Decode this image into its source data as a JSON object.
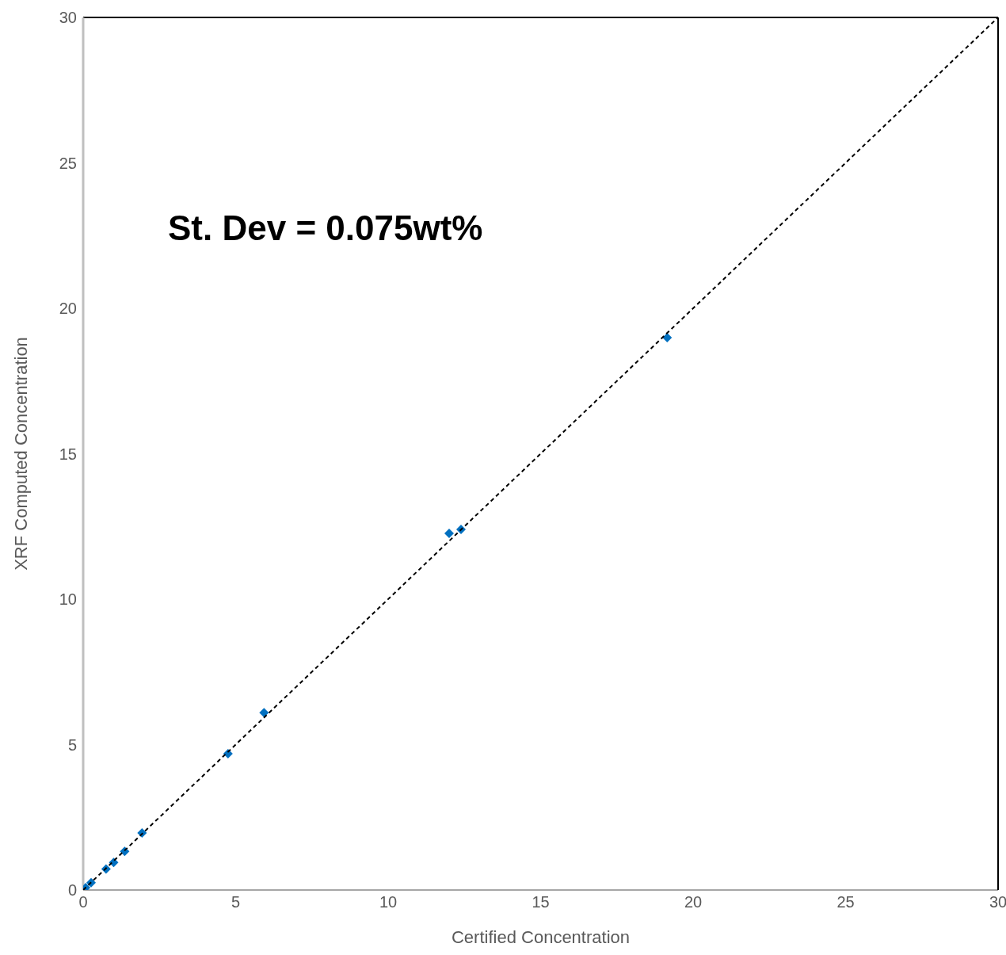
{
  "chart_data": {
    "type": "scatter",
    "xlabel": "Certified Concentration",
    "ylabel": "XRF Computed Concentration",
    "annotations": [
      "St. Dev = 0.075wt%"
    ],
    "xlim": [
      0,
      30
    ],
    "ylim": [
      0,
      30
    ],
    "xticks": [
      0,
      5,
      10,
      15,
      20,
      25,
      30
    ],
    "yticks": [
      0,
      5,
      10,
      15,
      20,
      25,
      30
    ],
    "marker": "diamond",
    "series": [
      {
        "color": "#0070c0",
        "x": [
          0.08,
          0.26,
          0.75,
          1.0,
          1.36,
          1.93,
          4.75,
          5.93,
          12.0,
          12.39,
          19.15
        ],
        "values": [
          0.08,
          0.25,
          0.72,
          0.95,
          1.33,
          1.96,
          4.69,
          6.1,
          12.26,
          12.4,
          18.99
        ]
      },
      {
        "type": "line",
        "color": "#000000",
        "line_style": "dashed",
        "marker": "none",
        "x": [
          0,
          30
        ],
        "values": [
          0,
          30
        ]
      }
    ]
  }
}
